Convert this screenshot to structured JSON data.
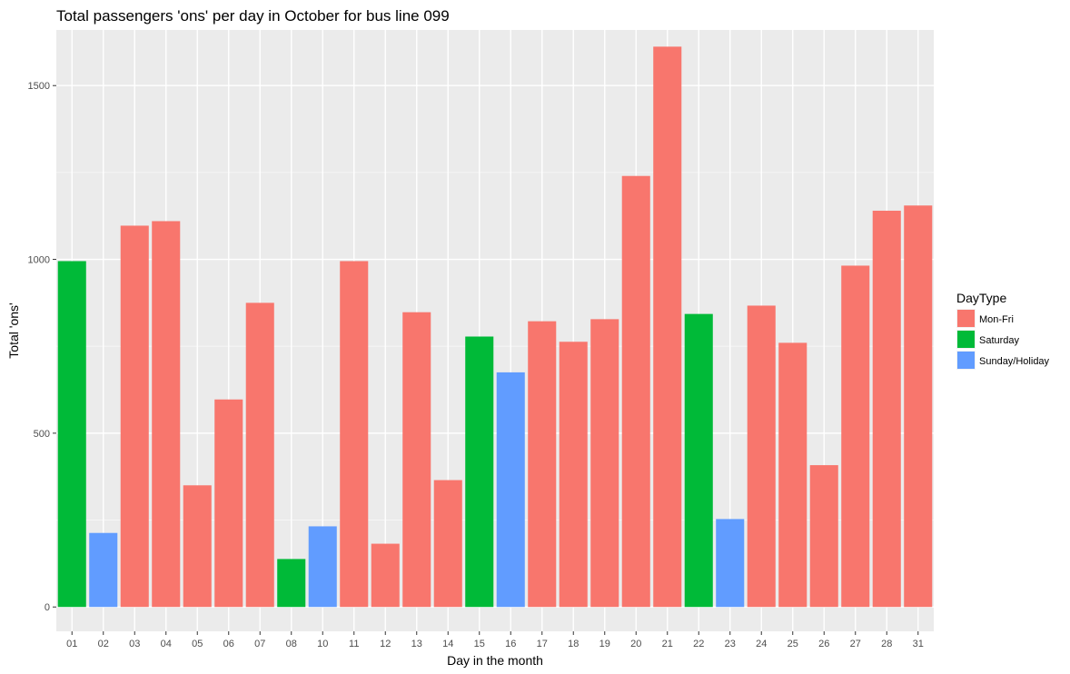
{
  "chart_data": {
    "type": "bar",
    "title": "Total passengers 'ons' per day in October for bus line 099",
    "xlabel": "Day in the month",
    "ylabel": "Total 'ons'",
    "ylim": [
      -70,
      1660
    ],
    "yticks": [
      0,
      500,
      1000,
      1500
    ],
    "grid": true,
    "legend": {
      "title": "DayType",
      "placement": "right",
      "entries": [
        {
          "name": "Mon-Fri",
          "color": "#F8766D"
        },
        {
          "name": "Saturday",
          "color": "#00BA38"
        },
        {
          "name": "Sunday/Holiday",
          "color": "#619CFF"
        }
      ]
    },
    "categories": [
      "01",
      "02",
      "03",
      "04",
      "05",
      "06",
      "07",
      "08",
      "10",
      "11",
      "12",
      "13",
      "14",
      "15",
      "16",
      "17",
      "18",
      "19",
      "20",
      "21",
      "22",
      "23",
      "24",
      "25",
      "26",
      "27",
      "28",
      "31"
    ],
    "values": [
      995,
      213,
      1097,
      1110,
      350,
      597,
      875,
      138,
      232,
      995,
      182,
      848,
      365,
      778,
      675,
      822,
      763,
      828,
      1240,
      1612,
      843,
      253,
      867,
      760,
      408,
      982,
      1140,
      1155
    ],
    "day_types": [
      "Saturday",
      "Sunday/Holiday",
      "Mon-Fri",
      "Mon-Fri",
      "Mon-Fri",
      "Mon-Fri",
      "Mon-Fri",
      "Saturday",
      "Sunday/Holiday",
      "Mon-Fri",
      "Mon-Fri",
      "Mon-Fri",
      "Mon-Fri",
      "Saturday",
      "Sunday/Holiday",
      "Mon-Fri",
      "Mon-Fri",
      "Mon-Fri",
      "Mon-Fri",
      "Mon-Fri",
      "Saturday",
      "Sunday/Holiday",
      "Mon-Fri",
      "Mon-Fri",
      "Mon-Fri",
      "Mon-Fri",
      "Mon-Fri",
      "Mon-Fri"
    ]
  }
}
